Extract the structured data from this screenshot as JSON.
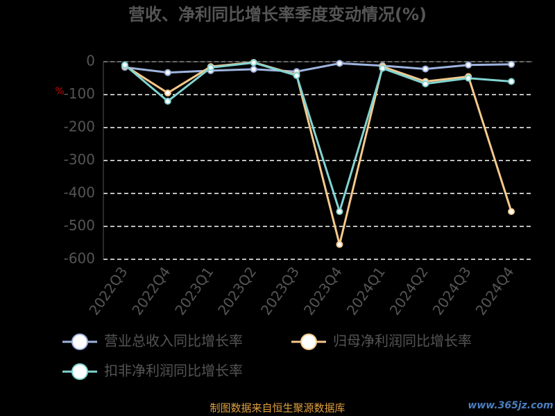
{
  "chart_data": {
    "type": "line",
    "title": "营收、净利同比增长率季度变动情况(%)",
    "y_label": "%",
    "categories": [
      "2022Q3",
      "2022Q4",
      "2023Q1",
      "2023Q2",
      "2023Q3",
      "2023Q4",
      "2024Q1",
      "2024Q2",
      "2024Q3",
      "2024Q4"
    ],
    "series": [
      {
        "name": "营业总收入同比增长率",
        "color": "#9fb4e0",
        "values": [
          -17,
          -33,
          -27,
          -23,
          -30,
          -5,
          -12,
          -22,
          -10,
          -8
        ]
      },
      {
        "name": "归母净利润同比增长率",
        "color": "#f6c98c",
        "values": [
          -12,
          -95,
          -15,
          -2,
          -40,
          -555,
          -15,
          -60,
          -45,
          -455
        ]
      },
      {
        "name": "扣非净利润同比增长率",
        "color": "#82d4d2",
        "values": [
          -10,
          -120,
          -18,
          -3,
          -42,
          -455,
          -20,
          -67,
          -50,
          -60
        ]
      }
    ],
    "ylim": [
      -600,
      0
    ],
    "yticks": [
      0,
      -100,
      -200,
      -300,
      -400,
      -500,
      -600
    ],
    "grid": true,
    "source": "制图数据来自恒生聚源数据库",
    "watermark": "www.365jz.com"
  }
}
